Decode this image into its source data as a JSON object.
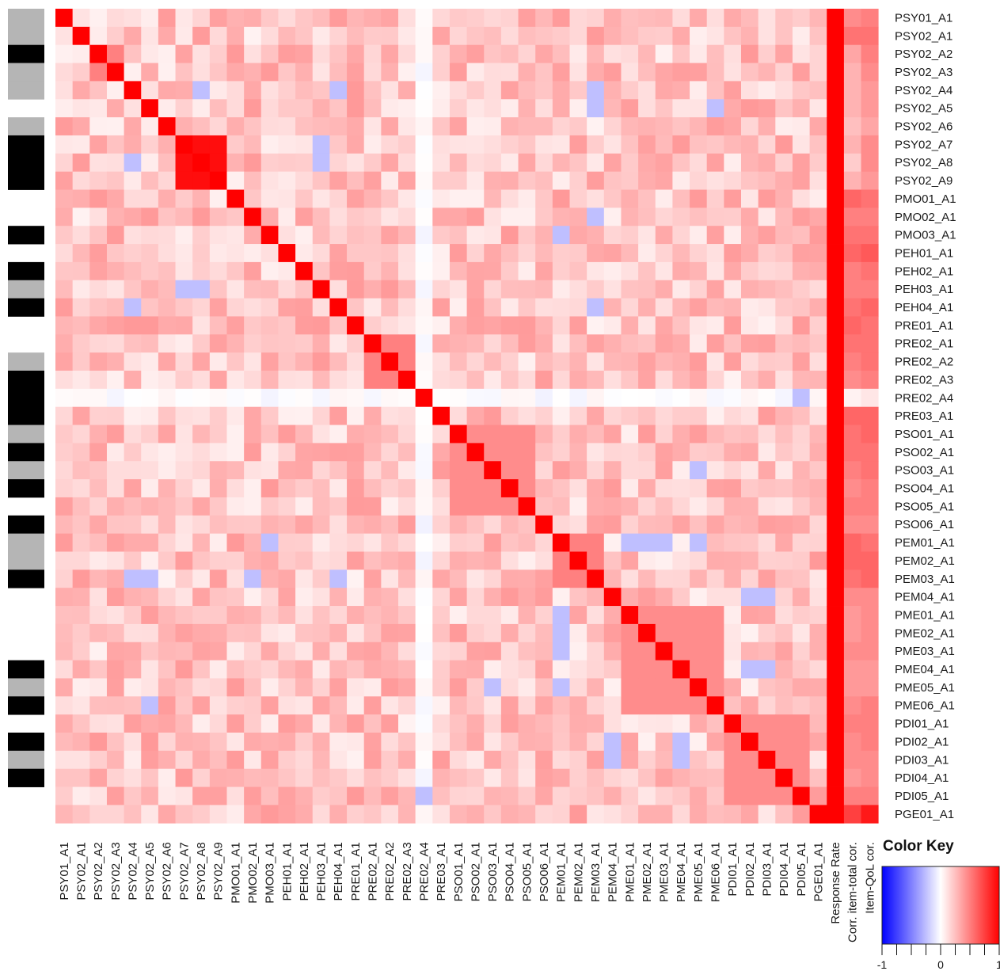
{
  "chart_data": {
    "type": "heatmap",
    "items": [
      "PSY01_A1",
      "PSY02_A1",
      "PSY02_A2",
      "PSY02_A3",
      "PSY02_A4",
      "PSY02_A5",
      "PSY02_A6",
      "PSY02_A7",
      "PSY02_A8",
      "PSY02_A9",
      "PMO01_A1",
      "PMO02_A1",
      "PMO03_A1",
      "PEH01_A1",
      "PEH02_A1",
      "PEH03_A1",
      "PEH04_A1",
      "PRE01_A1",
      "PRE02_A1",
      "PRE02_A2",
      "PRE02_A3",
      "PRE02_A4",
      "PRE03_A1",
      "PSO01_A1",
      "PSO02_A1",
      "PSO03_A1",
      "PSO04_A1",
      "PSO05_A1",
      "PSO06_A1",
      "PEM01_A1",
      "PEM02_A1",
      "PEM03_A1",
      "PEM04_A1",
      "PME01_A1",
      "PME02_A1",
      "PME03_A1",
      "PME04_A1",
      "PME05_A1",
      "PME06_A1",
      "PDI01_A1",
      "PDI02_A1",
      "PDI03_A1",
      "PDI04_A1",
      "PDI05_A1",
      "PGE01_A1"
    ],
    "extra_columns": [
      "Response Rate",
      "Corr. item-total cor.",
      "Item-QoL cor."
    ],
    "response_rate": [
      1,
      1,
      1,
      1,
      1,
      1,
      1,
      1,
      1,
      1,
      1,
      1,
      1,
      1,
      1,
      1,
      1,
      1,
      1,
      1,
      1,
      1,
      1,
      1,
      1,
      1,
      1,
      1,
      1,
      1,
      1,
      1,
      1,
      1,
      1,
      1,
      1,
      1,
      1,
      1,
      1,
      1,
      1,
      1,
      1
    ],
    "item_total_cor": [
      0.45,
      0.55,
      0.35,
      0.3,
      0.3,
      0.3,
      0.25,
      0.3,
      0.2,
      0.3,
      0.6,
      0.5,
      0.55,
      0.6,
      0.5,
      0.5,
      0.55,
      0.6,
      0.55,
      0.5,
      0.45,
      0.05,
      0.6,
      0.55,
      0.55,
      0.5,
      0.45,
      0.5,
      0.45,
      0.6,
      0.6,
      0.55,
      0.45,
      0.4,
      0.4,
      0.45,
      0.4,
      0.4,
      0.45,
      0.5,
      0.45,
      0.45,
      0.4,
      0.5,
      0.75
    ],
    "item_qol_cor": [
      0.5,
      0.55,
      0.5,
      0.45,
      0.4,
      0.4,
      0.35,
      0.45,
      0.45,
      0.4,
      0.55,
      0.5,
      0.55,
      0.65,
      0.55,
      0.5,
      0.6,
      0.55,
      0.55,
      0.55,
      0.5,
      0.1,
      0.6,
      0.6,
      0.55,
      0.55,
      0.5,
      0.5,
      0.45,
      0.55,
      0.6,
      0.6,
      0.45,
      0.45,
      0.45,
      0.45,
      0.4,
      0.4,
      0.5,
      0.5,
      0.5,
      0.45,
      0.45,
      0.5,
      0.9
    ],
    "row_groups": [
      "grey",
      "grey",
      "black",
      "grey",
      "grey",
      "white",
      "grey",
      "black",
      "black",
      "black",
      "white",
      "white",
      "black",
      "white",
      "black",
      "grey",
      "black",
      "white",
      "white",
      "grey",
      "black",
      "black",
      "black",
      "grey",
      "black",
      "grey",
      "black",
      "white",
      "black",
      "grey",
      "grey",
      "black",
      "white",
      "white",
      "white",
      "white",
      "black",
      "grey",
      "black",
      "white",
      "black",
      "grey",
      "black",
      "white",
      "white"
    ],
    "color_key": {
      "title": "Color Key",
      "range": [
        -1,
        1
      ],
      "ticks": [
        "-1",
        "0",
        "1"
      ],
      "colors": {
        "low": "#0000ff",
        "mid": "#ffffff",
        "high": "#ff0000"
      }
    },
    "blocks": [
      {
        "from": 7,
        "to": 9,
        "value": 0.95
      },
      {
        "from": 2,
        "to": 3,
        "value": 0.5
      },
      {
        "from": 18,
        "to": 20,
        "value": 0.5
      },
      {
        "from": 23,
        "to": 27,
        "value": 0.45
      },
      {
        "from": 29,
        "to": 31,
        "value": 0.5
      },
      {
        "from": 33,
        "to": 38,
        "value": 0.45
      },
      {
        "from": 39,
        "to": 43,
        "value": 0.45
      }
    ],
    "negative_cells": [
      [
        4,
        16
      ],
      [
        4,
        31
      ],
      [
        7,
        15
      ],
      [
        8,
        15
      ],
      [
        8,
        4
      ],
      [
        12,
        29
      ],
      [
        16,
        4
      ],
      [
        16,
        31
      ],
      [
        29,
        34
      ],
      [
        29,
        35
      ],
      [
        29,
        37
      ],
      [
        31,
        5
      ],
      [
        31,
        11
      ],
      [
        32,
        40
      ],
      [
        32,
        41
      ],
      [
        33,
        29
      ],
      [
        34,
        29
      ],
      [
        36,
        40
      ],
      [
        37,
        25
      ],
      [
        38,
        5
      ],
      [
        40,
        36
      ],
      [
        41,
        36
      ],
      [
        43,
        21
      ]
    ]
  }
}
